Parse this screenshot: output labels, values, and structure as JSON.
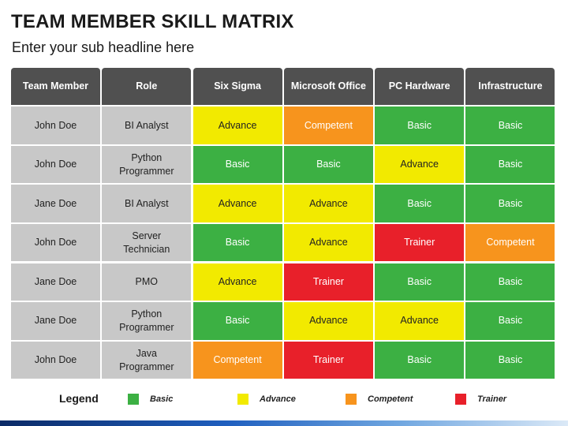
{
  "title": "TEAM MEMBER SKILL MATRIX",
  "subtitle": "Enter your sub headline here",
  "headers": [
    "Team Member",
    "Role",
    "Six Sigma",
    "Microsoft Office",
    "PC Hardware",
    "Infrastructure"
  ],
  "rows": [
    {
      "member": "John Doe",
      "role": "BI Analyst",
      "skills": [
        "Advance",
        "Competent",
        "Basic",
        "Basic"
      ]
    },
    {
      "member": "John Doe",
      "role": "Python\nProgrammer",
      "skills": [
        "Basic",
        "Basic",
        "Advance",
        "Basic"
      ]
    },
    {
      "member": "Jane Doe",
      "role": "BI Analyst",
      "skills": [
        "Advance",
        "Advance",
        "Basic",
        "Basic"
      ]
    },
    {
      "member": "John Doe",
      "role": "Server\nTechnician",
      "skills": [
        "Basic",
        "Advance",
        "Trainer",
        "Competent"
      ]
    },
    {
      "member": "Jane Doe",
      "role": "PMO",
      "skills": [
        "Advance",
        "Trainer",
        "Basic",
        "Basic"
      ]
    },
    {
      "member": "Jane Doe",
      "role": "Python\nProgrammer",
      "skills": [
        "Basic",
        "Advance",
        "Advance",
        "Basic"
      ]
    },
    {
      "member": "John Doe",
      "role": "Java\nProgrammer",
      "skills": [
        "Competent",
        "Trainer",
        "Basic",
        "Basic"
      ]
    }
  ],
  "legend": {
    "title": "Legend",
    "items": [
      {
        "label": "Basic",
        "color": "#3cb043"
      },
      {
        "label": "Advance",
        "color": "#f2ea00"
      },
      {
        "label": "Competent",
        "color": "#f7941d"
      },
      {
        "label": "Trainer",
        "color": "#e8202a"
      }
    ]
  },
  "level_colors": {
    "Basic": "#3cb043",
    "Advance": "#f2ea00",
    "Competent": "#f7941d",
    "Trainer": "#e8202a"
  }
}
